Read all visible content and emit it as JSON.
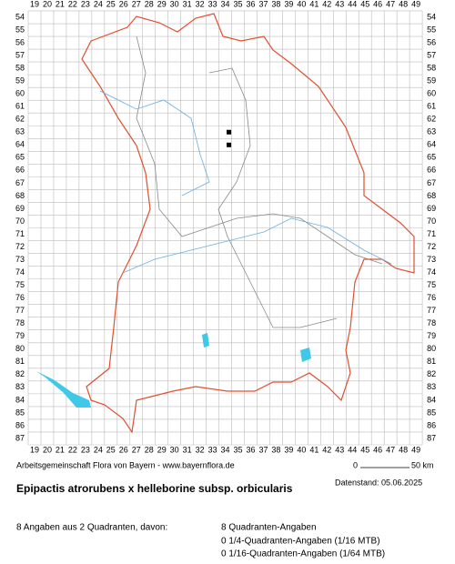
{
  "map": {
    "columns": [
      19,
      20,
      21,
      22,
      23,
      24,
      25,
      26,
      27,
      28,
      29,
      30,
      31,
      32,
      33,
      34,
      35,
      36,
      37,
      38,
      39,
      40,
      41,
      42,
      43,
      44,
      45,
      46,
      47,
      48,
      49
    ],
    "rows": [
      54,
      55,
      56,
      57,
      58,
      59,
      60,
      61,
      62,
      63,
      64,
      65,
      66,
      67,
      68,
      69,
      70,
      71,
      72,
      73,
      74,
      75,
      76,
      77,
      78,
      79,
      80,
      81,
      82,
      83,
      84,
      85,
      86,
      87
    ],
    "records": [
      {
        "col": 34,
        "row": 63
      },
      {
        "col": 34,
        "row": 64
      }
    ]
  },
  "footer": {
    "source": "Arbeitsgemeinschaft Flora von Bayern - www.bayernflora.de",
    "scale_start": "0",
    "scale_end": "50 km",
    "date": "Datenstand: 05.06.2025"
  },
  "title": "Epipactis atrorubens x helleborine subsp. orbicularis",
  "stats": {
    "summary": "8 Angaben aus 2 Quadranten, davon:",
    "lines": [
      "8 Quadranten-Angaben",
      "0 1/4-Quadranten-Angaben (1/16 MTB)",
      "0 1/16-Quadranten-Angaben (1/64 MTB)"
    ]
  }
}
